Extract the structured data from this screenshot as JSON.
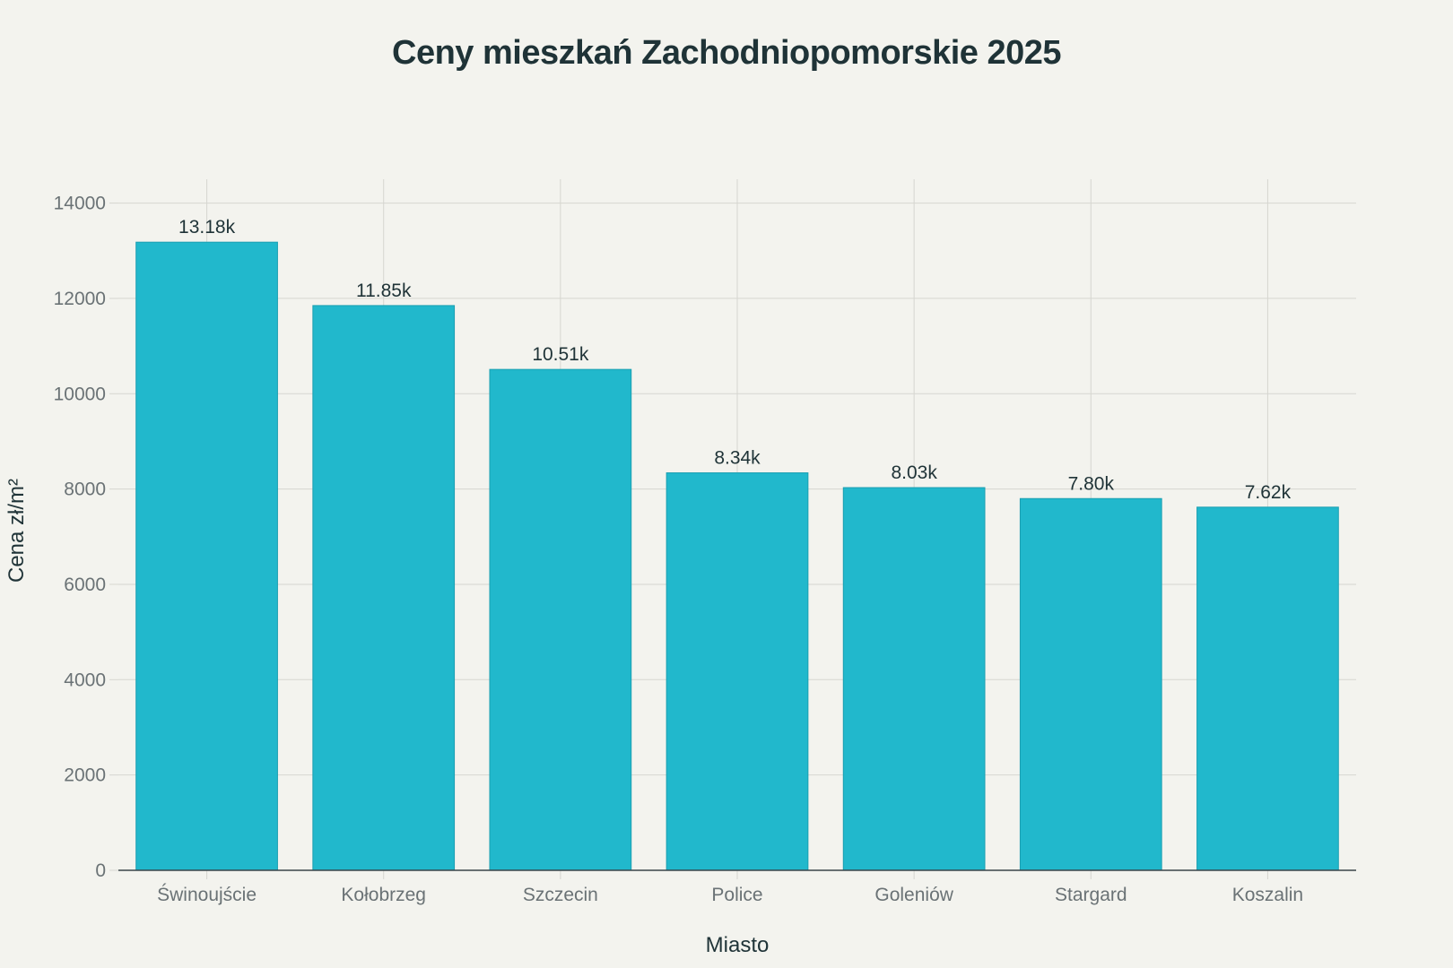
{
  "chart_data": {
    "type": "bar",
    "title": "Ceny mieszkań Zachodniopomorskie 2025",
    "xlabel": "Miasto",
    "ylabel": "Cena zł/m²",
    "categories": [
      "Świnoujście",
      "Kołobrzeg",
      "Szczecin",
      "Police",
      "Goleniów",
      "Stargard",
      "Koszalin"
    ],
    "values": [
      13180,
      11850,
      10510,
      8340,
      8030,
      7800,
      7620
    ],
    "value_labels": [
      "13.18k",
      "11.85k",
      "10.51k",
      "8.34k",
      "8.03k",
      "7.80k",
      "7.62k"
    ],
    "ylim": [
      0,
      14500
    ],
    "yticks": [
      0,
      2000,
      4000,
      6000,
      8000,
      10000,
      12000,
      14000
    ],
    "ytick_labels": [
      "0",
      "2000",
      "4000",
      "6000",
      "8000",
      "10000",
      "12000",
      "14000"
    ],
    "grid": true,
    "colors": {
      "bar": "#21b8cc",
      "bar_edge": "#1a9fb1",
      "grid": "#d6d6d0",
      "axis": "#3a4448",
      "text": "#1f3337",
      "tick_text": "#6a7275",
      "background": "#f3f3ee"
    }
  }
}
